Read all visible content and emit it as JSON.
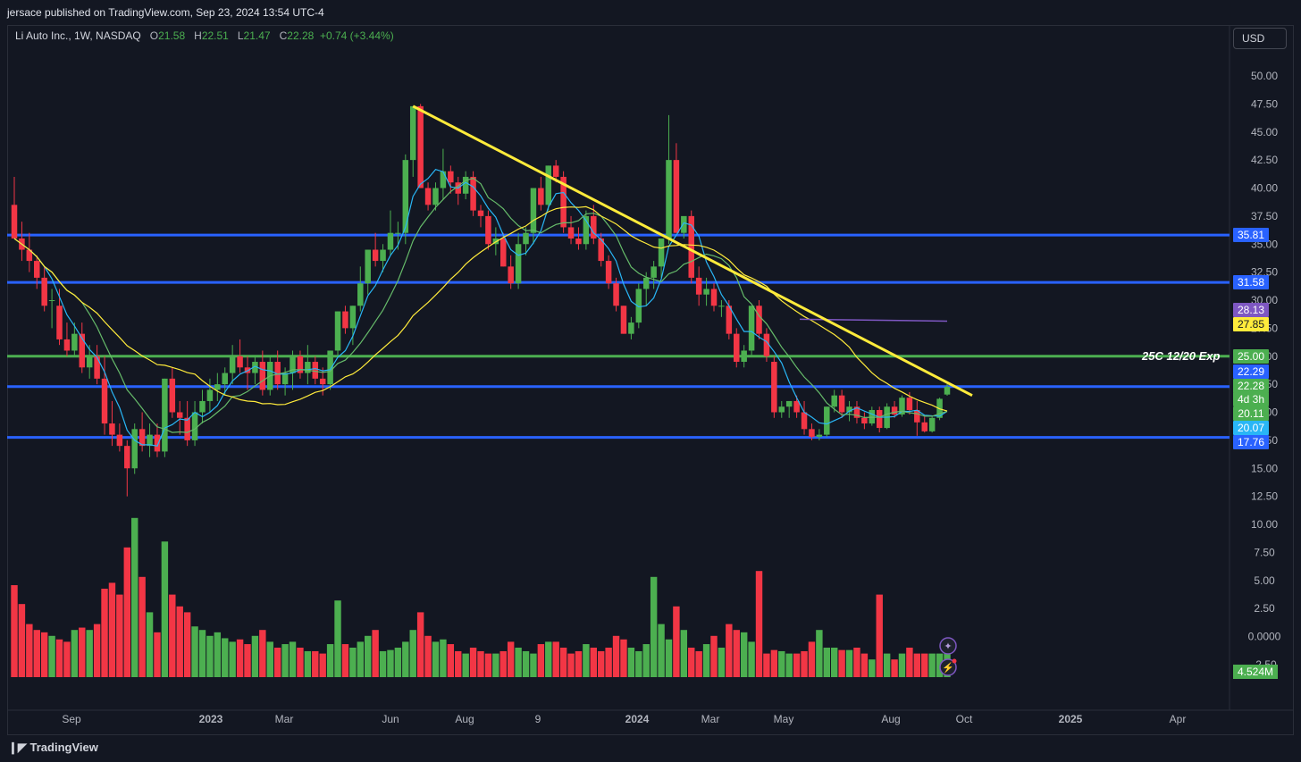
{
  "header": {
    "published_text": "jersace published on TradingView.com, Sep 23, 2024 13:54 UTC-4"
  },
  "legend": {
    "symbol": "Li Auto Inc., 1W, NASDAQ",
    "o_label": "O",
    "o_value": "21.58",
    "h_label": "H",
    "h_value": "22.51",
    "l_label": "L",
    "l_value": "21.47",
    "c_label": "C",
    "c_value": "22.28",
    "change": "+0.74 (+3.44%)"
  },
  "currency_button": "USD",
  "annotation_text": "25C 12/20 Exp",
  "footer": {
    "brand": "TradingView"
  },
  "colors": {
    "background": "#131722",
    "up": "#4caf50",
    "down": "#f23645",
    "horizontal_blue": "#2962ff",
    "horizontal_green": "#4caf50",
    "trendline": "#ffeb3b",
    "ma_fast": "#29b6f6",
    "ma_mid": "#66bb6a",
    "ma_slow": "#ffeb3b",
    "ma_purple": "#7e57c2"
  },
  "icons": [
    "sparkle-icon",
    "lightning-icon",
    "tradingview-logo-icon"
  ],
  "chart_data": {
    "type": "candlestick",
    "symbol": "Li Auto Inc.",
    "interval": "1W",
    "exchange": "NASDAQ",
    "y_axis": {
      "ticks": [
        "50.00",
        "47.50",
        "45.00",
        "42.50",
        "40.00",
        "37.50",
        "35.00",
        "32.50",
        "30.00",
        "27.50",
        "25.00",
        "22.50",
        "20.00",
        "17.50",
        "15.00",
        "12.50",
        "10.00",
        "7.50",
        "5.00",
        "2.50",
        "0.0000",
        "-2.50"
      ],
      "ylim": [
        -3.5,
        52
      ]
    },
    "x_axis": {
      "ticks": [
        "Sep",
        "2023",
        "Mar",
        "Jun",
        "Aug",
        "9",
        "2024",
        "Mar",
        "May",
        "Aug",
        "Oct",
        "2025",
        "Apr"
      ]
    },
    "price_labels": [
      {
        "text": "35.81",
        "value": 35.81,
        "color": "#2962ff"
      },
      {
        "text": "31.58",
        "value": 31.58,
        "color": "#2962ff"
      },
      {
        "text": "28.13",
        "value": 28.13,
        "color": "#7e57c2"
      },
      {
        "text": "27.85",
        "value": 27.85,
        "color": "#ffeb3b"
      },
      {
        "text": "25.00",
        "value": 25.0,
        "color": "#4caf50"
      },
      {
        "text": "22.29",
        "value": 22.29,
        "color": "#2962ff"
      },
      {
        "text": "22.28",
        "value": 22.28,
        "color": "#4caf50"
      },
      {
        "text": "4d 3h",
        "value": 21.2,
        "color": "#4caf50"
      },
      {
        "text": "20.11",
        "value": 20.11,
        "color": "#4caf50"
      },
      {
        "text": "20.07",
        "value": 20.07,
        "color": "#29b6f6"
      },
      {
        "text": "17.76",
        "value": 17.76,
        "color": "#2962ff"
      }
    ],
    "volume_label": "4.524M",
    "horizontal_lines": [
      {
        "value": 35.81,
        "color": "#2962ff"
      },
      {
        "value": 31.58,
        "color": "#2962ff"
      },
      {
        "value": 25.0,
        "color": "#4caf50"
      },
      {
        "value": 22.29,
        "color": "#2962ff"
      },
      {
        "value": 17.76,
        "color": "#2962ff"
      }
    ],
    "trendline": {
      "from": {
        "bar": 0,
        "value": 47.3
      },
      "to": {
        "bar": 1,
        "value": 21.5
      },
      "color": "#ffeb3b"
    },
    "candles_ohlc": [
      [
        38.5,
        41,
        35.5,
        35.5
      ],
      [
        35.5,
        37,
        33.5,
        34.5
      ],
      [
        34.5,
        36,
        32.5,
        33.5
      ],
      [
        33.5,
        34,
        31,
        32
      ],
      [
        32,
        33,
        29,
        29.5
      ],
      [
        30,
        31,
        27.5,
        30
      ],
      [
        29.5,
        31,
        26,
        26.5
      ],
      [
        26.5,
        28,
        25,
        25.5
      ],
      [
        25.5,
        28,
        25,
        27
      ],
      [
        27,
        28,
        23.5,
        24
      ],
      [
        24,
        26,
        23,
        25
      ],
      [
        25,
        26,
        22.5,
        23
      ],
      [
        23,
        25,
        18,
        19
      ],
      [
        19,
        21,
        17,
        18
      ],
      [
        18,
        19,
        16.5,
        17
      ],
      [
        17,
        17.5,
        12.5,
        15
      ],
      [
        15,
        19,
        14.5,
        18.5
      ],
      [
        18.5,
        20,
        16.5,
        17
      ],
      [
        17,
        19,
        16,
        18
      ],
      [
        18,
        19,
        16,
        16.5
      ],
      [
        16.5,
        23,
        16,
        23
      ],
      [
        23,
        24,
        19.5,
        20
      ],
      [
        20,
        21,
        18,
        19.5
      ],
      [
        19.5,
        21,
        17,
        17.5
      ],
      [
        17.5,
        21,
        17,
        20
      ],
      [
        20,
        22,
        19,
        21
      ],
      [
        21,
        23,
        20,
        22
      ],
      [
        22,
        23.5,
        21,
        22.5
      ],
      [
        22.5,
        24,
        21.5,
        23.5
      ],
      [
        23.5,
        26,
        22.5,
        25
      ],
      [
        25,
        26.5,
        23.5,
        24
      ],
      [
        24,
        25,
        22,
        23.5
      ],
      [
        23.5,
        25,
        22.5,
        24.5
      ],
      [
        24.5,
        25.5,
        21.5,
        22
      ],
      [
        22,
        25,
        21.5,
        24.5
      ],
      [
        24.5,
        25.5,
        22,
        22.5
      ],
      [
        22.5,
        24,
        21.5,
        23.5
      ],
      [
        23.5,
        25.5,
        22,
        25
      ],
      [
        25,
        25.5,
        23,
        23.5
      ],
      [
        23.5,
        26,
        22.5,
        24.5
      ],
      [
        24.5,
        25,
        22.5,
        23
      ],
      [
        23,
        24,
        21.5,
        22.5
      ],
      [
        22.5,
        25.5,
        22,
        25.5
      ],
      [
        25.5,
        29,
        25,
        29
      ],
      [
        29,
        29.5,
        27,
        27.5
      ],
      [
        27.5,
        29.5,
        26,
        29.5
      ],
      [
        29.5,
        33,
        29,
        31.5
      ],
      [
        31.5,
        34.5,
        30.5,
        34.5
      ],
      [
        34.5,
        36,
        33,
        33.5
      ],
      [
        33.5,
        35,
        32.5,
        34.5
      ],
      [
        34.5,
        38,
        34,
        36
      ],
      [
        36,
        37,
        34.5,
        36
      ],
      [
        36,
        43,
        35,
        42.5
      ],
      [
        42.5,
        46,
        41,
        47.3
      ],
      [
        47.3,
        47.5,
        40,
        40
      ],
      [
        40,
        40.5,
        38,
        38.5
      ],
      [
        38.5,
        40.5,
        38,
        40
      ],
      [
        40,
        43.5,
        39,
        41.5
      ],
      [
        41.5,
        42,
        39.5,
        40.5
      ],
      [
        40.5,
        41,
        38.5,
        39.5
      ],
      [
        39.5,
        41.5,
        39,
        41
      ],
      [
        41,
        41.5,
        37.5,
        38
      ],
      [
        38,
        38.5,
        36.5,
        37.5
      ],
      [
        37.5,
        38,
        34.5,
        35
      ],
      [
        35,
        36.5,
        34,
        35.5
      ],
      [
        35.5,
        36,
        33,
        33
      ],
      [
        33,
        34,
        31,
        31.5
      ],
      [
        31.5,
        36,
        31,
        35
      ],
      [
        35,
        36.5,
        34,
        36
      ],
      [
        36,
        39,
        35,
        40
      ],
      [
        40,
        41,
        38,
        38.5
      ],
      [
        38.5,
        42,
        38,
        42
      ],
      [
        42,
        42.5,
        40.5,
        41
      ],
      [
        41,
        41.5,
        36,
        36.5
      ],
      [
        36.5,
        37.5,
        35,
        35.5
      ],
      [
        35.5,
        36.5,
        34.5,
        35
      ],
      [
        35,
        38,
        34.5,
        37.5
      ],
      [
        37.5,
        38.5,
        35,
        35.5
      ],
      [
        35.5,
        36,
        33,
        33.5
      ],
      [
        33.5,
        34,
        31,
        31.5
      ],
      [
        31.5,
        32,
        29,
        29.5
      ],
      [
        29.5,
        29.5,
        27,
        27
      ],
      [
        27,
        28.5,
        26.5,
        28
      ],
      [
        28,
        31.5,
        27.5,
        31
      ],
      [
        31,
        32.5,
        29.5,
        32
      ],
      [
        32,
        33.5,
        31,
        33
      ],
      [
        33,
        33.5,
        32,
        35.5
      ],
      [
        35.5,
        46.5,
        35,
        42.5
      ],
      [
        42.5,
        44,
        36,
        36
      ],
      [
        36,
        37,
        35.5,
        37.5
      ],
      [
        37.5,
        38,
        31.5,
        32
      ],
      [
        32,
        33,
        29.5,
        30.5
      ],
      [
        30.5,
        32,
        29.5,
        31
      ],
      [
        31,
        31.5,
        29,
        29.5
      ],
      [
        29.5,
        30,
        28.5,
        29.5
      ],
      [
        29.5,
        30,
        26.5,
        27
      ],
      [
        27,
        27.5,
        24,
        24.5
      ],
      [
        24.5,
        26,
        24,
        25.5
      ],
      [
        25.5,
        29.5,
        25,
        29.5
      ],
      [
        29.5,
        30,
        26.5,
        27
      ],
      [
        27,
        27.5,
        24.5,
        25
      ],
      [
        24.5,
        25,
        19.5,
        20
      ],
      [
        20,
        21,
        19.5,
        20.5
      ],
      [
        20.5,
        21,
        19.5,
        21
      ],
      [
        21,
        21.5,
        19.5,
        20
      ],
      [
        20,
        21,
        18,
        18.5
      ],
      [
        18.5,
        19,
        17.5,
        17.8
      ],
      [
        17.8,
        18.5,
        17.5,
        18
      ],
      [
        18,
        20.5,
        17.8,
        20.5
      ],
      [
        20.5,
        22,
        20,
        21.5
      ],
      [
        21.5,
        22,
        19.5,
        20
      ],
      [
        20,
        21,
        19.2,
        20.5
      ],
      [
        20.5,
        21,
        19,
        19.5
      ],
      [
        19.5,
        20,
        18.5,
        19
      ],
      [
        19,
        20.5,
        18.8,
        20.2
      ],
      [
        20.2,
        20.5,
        18.2,
        18.6
      ],
      [
        18.6,
        20.8,
        18.5,
        20.5
      ],
      [
        20.5,
        21,
        19.5,
        19.8
      ],
      [
        19.8,
        21.5,
        19.6,
        21.3
      ],
      [
        21.3,
        21.8,
        19.8,
        20.2
      ],
      [
        20.2,
        21,
        17.9,
        19.1
      ],
      [
        19.1,
        19.6,
        18.2,
        18.3
      ],
      [
        18.3,
        19.6,
        18.2,
        19.5
      ],
      [
        19.5,
        21.3,
        19.3,
        21.2
      ],
      [
        21.58,
        22.51,
        21.47,
        22.28
      ]
    ],
    "volume_units_note": "relative volume bars, colored by candle direction"
  }
}
